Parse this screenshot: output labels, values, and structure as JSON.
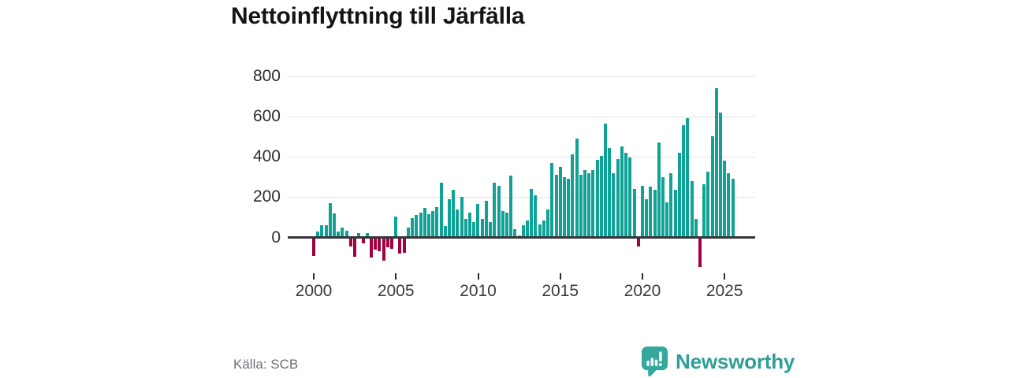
{
  "title": "Nettoinflyttning till Järfälla",
  "source": "Källa: SCB",
  "brand": {
    "name": "Newsworthy",
    "text_color": "#2f9e96",
    "icon_color": "#35a79c"
  },
  "colors": {
    "positive_bar": "#11a296",
    "negative_bar": "#9e0242",
    "gridline": "#e4e4e4",
    "zero_axis": "#35353a"
  },
  "chart_data": {
    "type": "bar",
    "title": "Nettoinflyttning till Järfälla",
    "frequency": "quarterly",
    "x_start": "2000-Q1",
    "x_end": "2025-Q3",
    "values": [
      -90,
      30,
      60,
      60,
      170,
      120,
      30,
      50,
      35,
      -45,
      -95,
      20,
      -30,
      20,
      -100,
      -60,
      -70,
      -115,
      -50,
      -55,
      105,
      -80,
      -75,
      50,
      95,
      110,
      125,
      145,
      115,
      130,
      150,
      270,
      55,
      190,
      235,
      140,
      200,
      90,
      125,
      75,
      165,
      90,
      180,
      75,
      270,
      255,
      130,
      125,
      305,
      40,
      10,
      60,
      85,
      240,
      210,
      65,
      85,
      140,
      370,
      310,
      350,
      300,
      290,
      410,
      490,
      310,
      335,
      320,
      335,
      385,
      405,
      565,
      445,
      320,
      390,
      450,
      420,
      395,
      240,
      -45,
      255,
      190,
      250,
      235,
      470,
      300,
      175,
      320,
      235,
      420,
      555,
      590,
      280,
      90,
      -145,
      265,
      325,
      500,
      740,
      620,
      380,
      320,
      290
    ],
    "xticks": [
      2000,
      2005,
      2010,
      2015,
      2020,
      2025
    ],
    "yticks": [
      0,
      200,
      400,
      600,
      800
    ],
    "ylim": [
      -200,
      820
    ],
    "grid": true,
    "legend": "none",
    "positive_color": "#11a296",
    "negative_color": "#9e0242",
    "source": "Källa: SCB"
  }
}
